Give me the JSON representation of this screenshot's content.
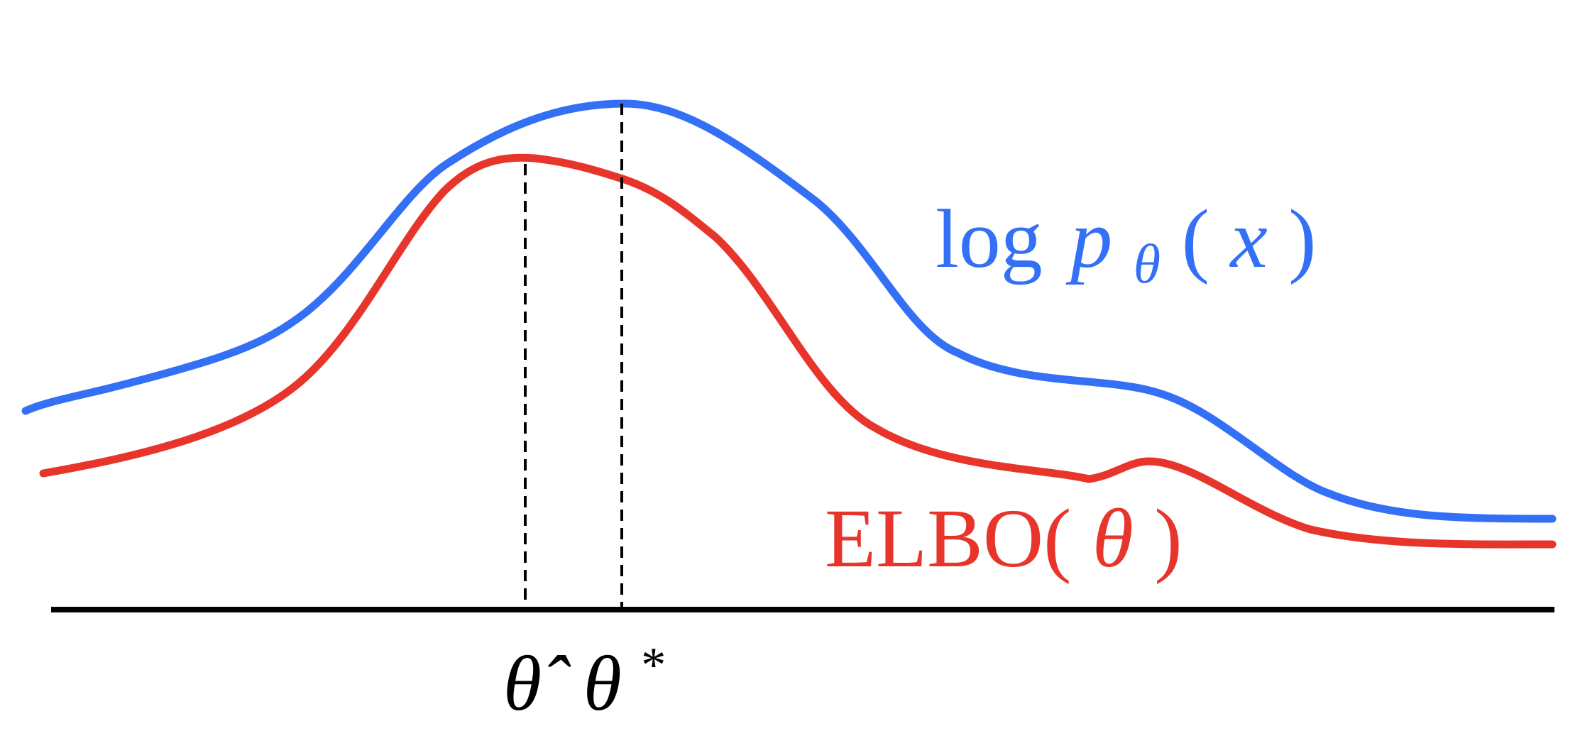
{
  "labels": {
    "log_likelihood": [
      "log",
      "p",
      "θ",
      "(",
      "x",
      ")"
    ],
    "elbo": [
      "ELBO(",
      "θ",
      ")"
    ],
    "theta_hat": "θ̂",
    "theta_star": [
      "θ",
      "*"
    ]
  }
}
